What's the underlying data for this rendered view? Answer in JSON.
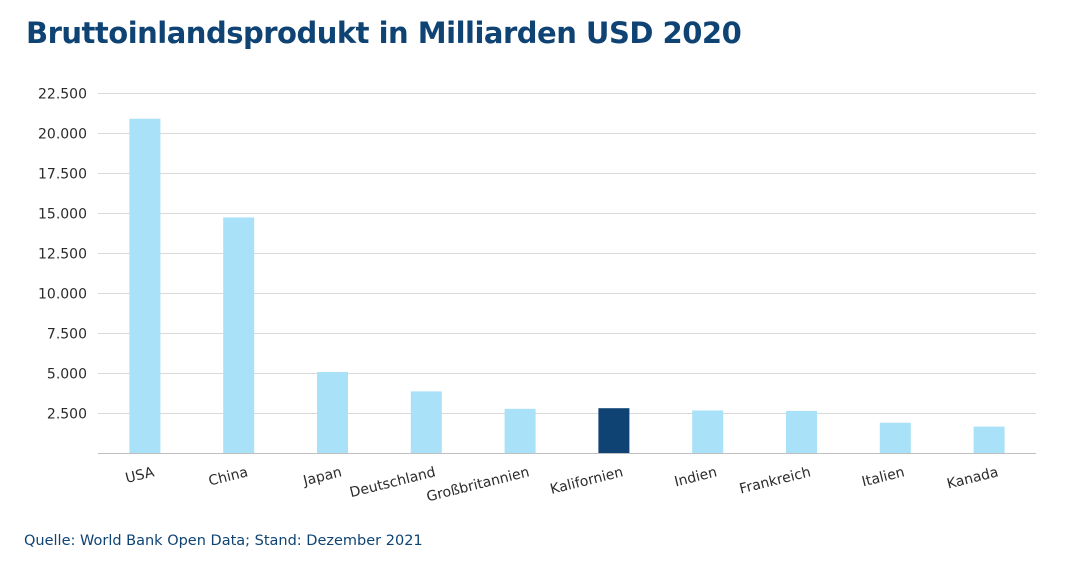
{
  "title": "Bruttoinlandsprodukt in Milliarden USD 2020",
  "source": "Quelle: World Bank Open Data; Stand: Dezember 2021",
  "colors": {
    "title": "#0e4373",
    "bar_default": "#a8e1f8",
    "bar_highlight": "#0e4373",
    "grid": "#d9d9d9",
    "axis": "#bfbfbf"
  },
  "chart_data": {
    "type": "bar",
    "categories": [
      "USA",
      "China",
      "Japan",
      "Deutschland",
      "Großbritannien",
      "Kalifornien",
      "Indien",
      "Frankreich",
      "Italien",
      "Kanada"
    ],
    "values": [
      20890,
      14720,
      5060,
      3850,
      2760,
      2800,
      2660,
      2630,
      1890,
      1650
    ],
    "highlight": "Kalifornien",
    "ylim": [
      0,
      22500
    ],
    "yticks": [
      2500,
      5000,
      7500,
      10000,
      12500,
      15000,
      17500,
      20000,
      22500
    ],
    "ytick_labels": [
      "2.500",
      "5.000",
      "7.500",
      "10.000",
      "12.500",
      "15.000",
      "17.500",
      "20.000",
      "22.500"
    ],
    "grid": true,
    "xlabel": "",
    "ylabel": ""
  }
}
